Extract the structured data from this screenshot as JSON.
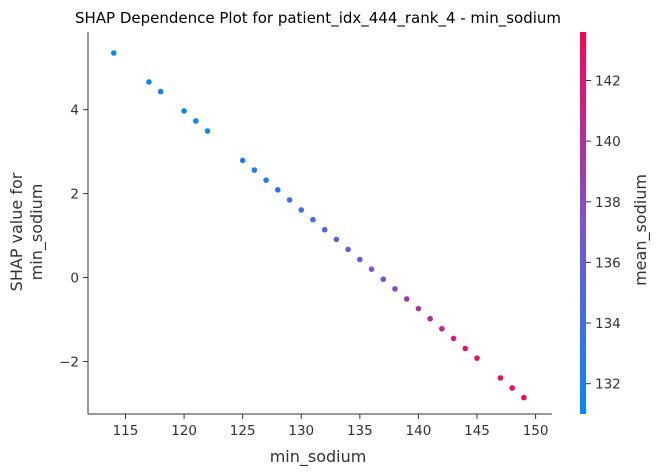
{
  "chart_data": {
    "type": "scatter",
    "title": "SHAP Dependence Plot for patient_idx_444_rank_4 - min_sodium",
    "xlabel": "min_sodium",
    "ylabel_lines": [
      "SHAP value for",
      "min_sodium"
    ],
    "colorbar_label": "mean_sodium",
    "xlim": [
      111.8,
      151.4
    ],
    "ylim": [
      -3.25,
      5.85
    ],
    "xticks": [
      115,
      120,
      125,
      130,
      135,
      140,
      145,
      150
    ],
    "yticks": [
      -2,
      0,
      2,
      4
    ],
    "ytick_labels": [
      "−2",
      "0",
      "2",
      "4"
    ],
    "colorbar_range": [
      131.0,
      143.6
    ],
    "colorbar_ticks": [
      132,
      134,
      136,
      138,
      140,
      142
    ],
    "colormap": {
      "low": "#008afb",
      "mid": "#7c52d6",
      "high": "#ff0052"
    },
    "grid": false,
    "points": [
      {
        "x": 114,
        "y": 5.35,
        "c": 131.2
      },
      {
        "x": 117,
        "y": 4.66,
        "c": 131.3
      },
      {
        "x": 118,
        "y": 4.43,
        "c": 131.3
      },
      {
        "x": 120,
        "y": 3.97,
        "c": 131.4
      },
      {
        "x": 121,
        "y": 3.73,
        "c": 131.4
      },
      {
        "x": 122,
        "y": 3.49,
        "c": 131.5
      },
      {
        "x": 125,
        "y": 2.79,
        "c": 132.0
      },
      {
        "x": 126,
        "y": 2.56,
        "c": 132.2
      },
      {
        "x": 127,
        "y": 2.32,
        "c": 132.5
      },
      {
        "x": 128,
        "y": 2.09,
        "c": 133.0
      },
      {
        "x": 129,
        "y": 1.85,
        "c": 133.5
      },
      {
        "x": 130,
        "y": 1.61,
        "c": 134.0
      },
      {
        "x": 131,
        "y": 1.38,
        "c": 134.5
      },
      {
        "x": 132,
        "y": 1.14,
        "c": 135.0
      },
      {
        "x": 133,
        "y": 0.91,
        "c": 135.5
      },
      {
        "x": 134,
        "y": 0.67,
        "c": 136.0
      },
      {
        "x": 135,
        "y": 0.43,
        "c": 136.5
      },
      {
        "x": 136,
        "y": 0.2,
        "c": 137.0
      },
      {
        "x": 137,
        "y": -0.04,
        "c": 137.6
      },
      {
        "x": 138,
        "y": -0.27,
        "c": 138.2
      },
      {
        "x": 139,
        "y": -0.51,
        "c": 138.9
      },
      {
        "x": 140,
        "y": -0.74,
        "c": 139.5
      },
      {
        "x": 141,
        "y": -0.98,
        "c": 140.2
      },
      {
        "x": 142,
        "y": -1.22,
        "c": 140.8
      },
      {
        "x": 143,
        "y": -1.45,
        "c": 141.5
      },
      {
        "x": 144,
        "y": -1.69,
        "c": 142.0
      },
      {
        "x": 145,
        "y": -1.92,
        "c": 142.5
      },
      {
        "x": 147,
        "y": -2.39,
        "c": 143.0
      },
      {
        "x": 148,
        "y": -2.63,
        "c": 143.2
      },
      {
        "x": 149,
        "y": -2.86,
        "c": 143.4
      }
    ]
  }
}
